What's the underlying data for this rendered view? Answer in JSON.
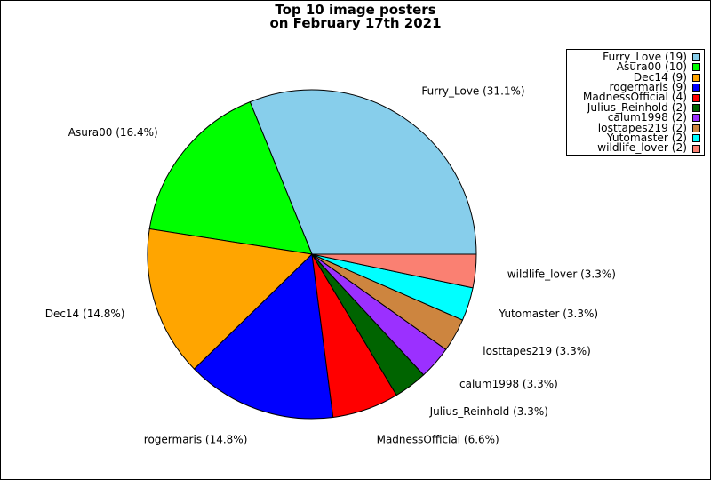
{
  "chart_data": {
    "type": "pie",
    "title": "Top 10 image posters",
    "subtitle": "on February 17th 2021",
    "legend_position": "top-right",
    "slices": [
      {
        "name": "Furry_Love",
        "count": 19,
        "percent": 31.1,
        "color": "#87ceeb",
        "legend": "Furry_Love (19)",
        "label": "Furry_Love (31.1%)"
      },
      {
        "name": "Asura00",
        "count": 10,
        "percent": 16.4,
        "color": "#00ff00",
        "legend": "Asura00 (10)",
        "label": "Asura00 (16.4%)"
      },
      {
        "name": "Dec14",
        "count": 9,
        "percent": 14.8,
        "color": "#ffa500",
        "legend": "Dec14 (9)",
        "label": "Dec14 (14.8%)"
      },
      {
        "name": "rogermaris",
        "count": 9,
        "percent": 14.8,
        "color": "#0000ff",
        "legend": "rogermaris (9)",
        "label": "rogermaris (14.8%)"
      },
      {
        "name": "MadnessOfficial",
        "count": 4,
        "percent": 6.6,
        "color": "#ff0000",
        "legend": "MadnessOfficial (4)",
        "label": "MadnessOfficial (6.6%)"
      },
      {
        "name": "Julius_Reinhold",
        "count": 2,
        "percent": 3.3,
        "color": "#006400",
        "legend": "Julius_Reinhold (2)",
        "label": "Julius_Reinhold (3.3%)"
      },
      {
        "name": "calum1998",
        "count": 2,
        "percent": 3.3,
        "color": "#9b30ff",
        "legend": "calum1998 (2)",
        "label": "calum1998 (3.3%)"
      },
      {
        "name": "losttapes219",
        "count": 2,
        "percent": 3.3,
        "color": "#cd853f",
        "legend": "losttapes219 (2)",
        "label": "losttapes219 (3.3%)"
      },
      {
        "name": "Yutomaster",
        "count": 2,
        "percent": 3.3,
        "color": "#00ffff",
        "legend": "Yutomaster (2)",
        "label": "Yutomaster (3.3%)"
      },
      {
        "name": "wildlife_lover",
        "count": 2,
        "percent": 3.3,
        "color": "#fa8072",
        "legend": "wildlife_lover (2)",
        "label": "wildlife_lover (3.3%)"
      }
    ]
  }
}
